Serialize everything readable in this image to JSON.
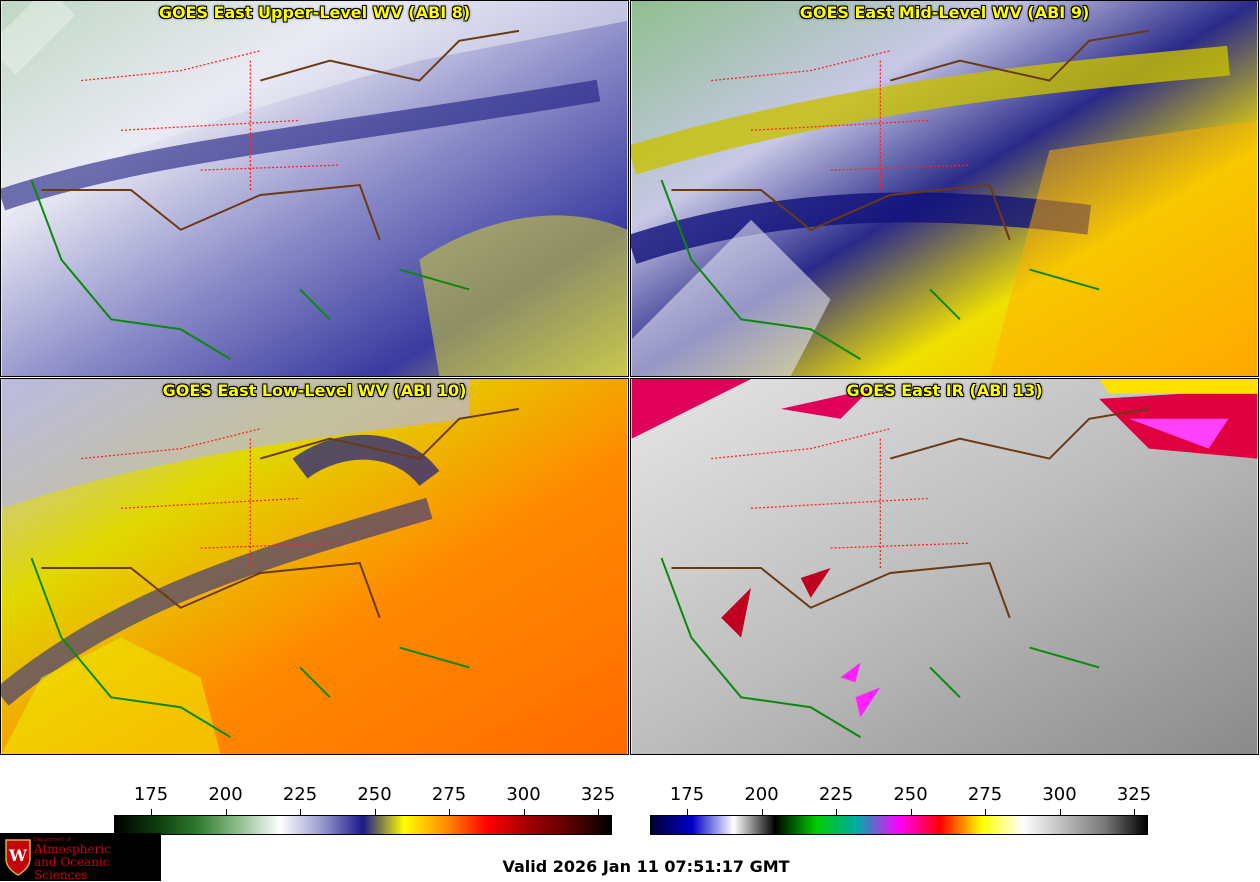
{
  "panels": [
    {
      "title": "GOES East Upper-Level WV (ABI 8)"
    },
    {
      "title": "GOES East Mid-Level WV (ABI 9)"
    },
    {
      "title": "GOES East Low-Level WV (ABI 10)"
    },
    {
      "title": "GOES East IR (ABI 13)"
    }
  ],
  "colorbar_wv": {
    "ticks": [
      "175",
      "200",
      "225",
      "250",
      "275",
      "300",
      "325"
    ],
    "colors": [
      "#000000",
      "#0b3d0b",
      "#2f7a2f",
      "#8fbf8f",
      "#ffffff",
      "#9a9acf",
      "#1a1a8a",
      "#ffff00",
      "#ff8c00",
      "#ff0000",
      "#a00000",
      "#5a0000",
      "#000000"
    ]
  },
  "colorbar_ir": {
    "ticks": [
      "175",
      "200",
      "225",
      "250",
      "275",
      "300",
      "325"
    ],
    "colors": [
      "#000033",
      "#0000cc",
      "#ffffff",
      "#000000",
      "#00cc00",
      "#00aaaa",
      "#ff00ff",
      "#ff0000",
      "#ffff00",
      "#ffffff",
      "#bbbbbb",
      "#777777",
      "#000000"
    ]
  },
  "logo": {
    "dept": "Department of",
    "line1": "Atmospheric",
    "line2": "and Oceanic Sciences",
    "crest": "W"
  },
  "valid_time": "Valid 2026 Jan 11 07:51:17 GMT"
}
